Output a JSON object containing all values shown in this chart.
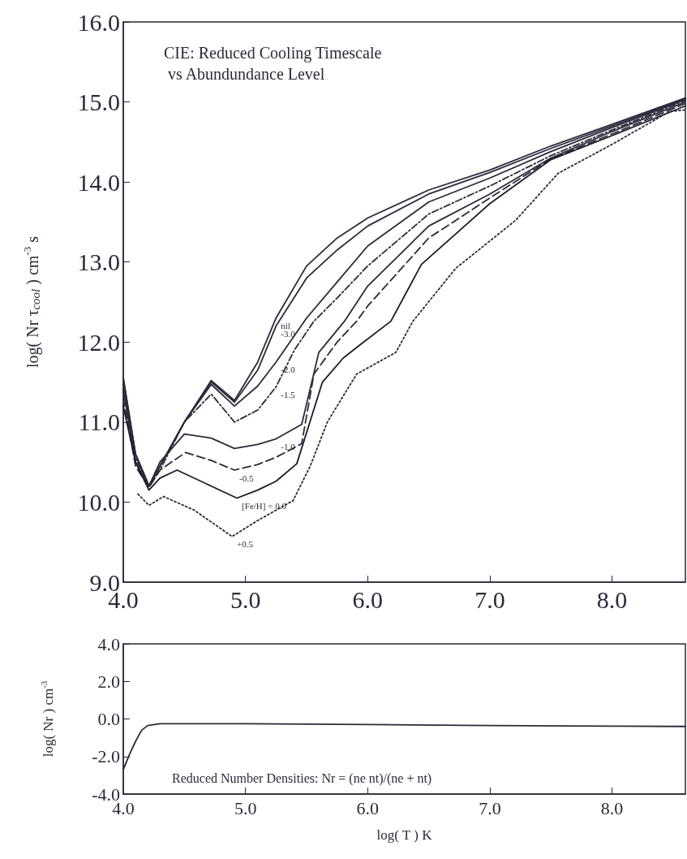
{
  "chart_data": [
    {
      "type": "line",
      "title": "CIE: Reduced Cooling Timescale\n vs Abundundance Level",
      "ylabel": "log( Nr τ$_{cool}$ ) cm$^{-3}$ s",
      "xlim": [
        4.0,
        8.6
      ],
      "ylim": [
        9.0,
        16.0
      ],
      "xticks": [
        {
          "value": 4,
          "label": "4.0"
        },
        {
          "value": 5,
          "label": "5.0"
        },
        {
          "value": 6,
          "label": "6.0"
        },
        {
          "value": 7,
          "label": "7.0"
        },
        {
          "value": 8,
          "label": "8.0"
        }
      ],
      "yticks": [
        {
          "value": 9,
          "label": "9.0"
        },
        {
          "value": 10,
          "label": "10.0"
        },
        {
          "value": 11,
          "label": "11.0"
        },
        {
          "value": 12,
          "label": "12.0"
        },
        {
          "value": 13,
          "label": "13.0"
        },
        {
          "value": 14,
          "label": "14.0"
        },
        {
          "value": 15,
          "label": "15.0"
        },
        {
          "value": 16,
          "label": "16.0"
        }
      ],
      "marker": "none",
      "grid": false,
      "series": [
        {
          "color": "#2a2a3a",
          "line_style": "solid",
          "x": [
            4.0,
            4.1,
            4.21,
            4.3,
            4.5,
            4.72,
            4.91,
            5.1,
            5.25,
            5.5,
            5.75,
            6.0,
            6.5,
            7.0,
            7.5,
            8.0,
            8.6
          ],
          "values": [
            11.55,
            10.6,
            10.2,
            10.45,
            11.0,
            11.52,
            11.27,
            11.75,
            12.3,
            12.95,
            13.3,
            13.55,
            13.9,
            14.15,
            14.45,
            14.72,
            15.05
          ]
        },
        {
          "color": "#2a2a3a",
          "line_style": "solid",
          "x": [
            4.0,
            4.1,
            4.21,
            4.3,
            4.5,
            4.72,
            4.91,
            5.1,
            5.25,
            5.5,
            5.75,
            6.0,
            6.5,
            7.0,
            7.5,
            8.0,
            8.6
          ],
          "values": [
            11.55,
            10.6,
            10.2,
            10.45,
            11.0,
            11.5,
            11.25,
            11.65,
            12.2,
            12.8,
            13.15,
            13.45,
            13.85,
            14.12,
            14.42,
            14.7,
            15.04
          ]
        },
        {
          "color": "#2a2a3a",
          "line_style": "solid",
          "x": [
            4.0,
            4.1,
            4.21,
            4.3,
            4.5,
            4.72,
            4.91,
            5.1,
            5.25,
            5.5,
            5.75,
            6.0,
            6.5,
            7.0,
            7.5,
            8.0,
            8.6
          ],
          "values": [
            11.5,
            10.6,
            10.2,
            10.45,
            11.0,
            11.47,
            11.2,
            11.45,
            11.75,
            12.3,
            12.75,
            13.2,
            13.75,
            14.05,
            14.38,
            14.68,
            15.03
          ]
        },
        {
          "color": "#2a2a3a",
          "line_style": "dashdot",
          "x": [
            4.0,
            4.1,
            4.21,
            4.3,
            4.5,
            4.72,
            4.91,
            5.1,
            5.25,
            5.4,
            5.56,
            5.75,
            6.0,
            6.5,
            7.0,
            7.5,
            8.0,
            8.6
          ],
          "values": [
            11.45,
            10.55,
            10.2,
            10.4,
            11.0,
            11.35,
            11.0,
            11.15,
            11.44,
            11.9,
            12.26,
            12.55,
            12.95,
            13.6,
            13.95,
            14.33,
            14.65,
            15.02
          ]
        },
        {
          "color": "#2a2a3a",
          "line_style": "solid",
          "x": [
            4.0,
            4.1,
            4.21,
            4.3,
            4.5,
            4.72,
            4.91,
            5.1,
            5.25,
            5.46,
            5.6,
            5.81,
            6.0,
            6.5,
            7.0,
            7.5,
            8.0,
            8.6
          ],
          "values": [
            11.4,
            10.5,
            10.2,
            10.5,
            10.85,
            10.8,
            10.67,
            10.72,
            10.79,
            10.97,
            11.87,
            12.26,
            12.7,
            13.45,
            13.85,
            14.3,
            14.63,
            15.0
          ]
        },
        {
          "color": "#2a2a3a",
          "line_style": "dashed",
          "x": [
            4.0,
            4.1,
            4.21,
            4.3,
            4.51,
            4.72,
            4.91,
            5.1,
            5.25,
            5.46,
            5.56,
            5.75,
            5.91,
            6.0,
            6.5,
            7.0,
            7.5,
            8.0,
            8.6
          ],
          "values": [
            11.3,
            10.45,
            10.18,
            10.4,
            10.62,
            10.52,
            10.4,
            10.47,
            10.56,
            10.73,
            11.6,
            12.0,
            12.26,
            12.45,
            13.3,
            13.8,
            14.29,
            14.6,
            14.98
          ]
        },
        {
          "color": "#1a1a2a",
          "line_style": "solid",
          "x": [
            4.0,
            4.1,
            4.21,
            4.3,
            4.44,
            4.72,
            4.93,
            5.1,
            5.25,
            5.42,
            5.63,
            5.8,
            5.95,
            6.19,
            6.44,
            7.0,
            7.5,
            8.0,
            8.6
          ],
          "values": [
            11.2,
            10.5,
            10.15,
            10.3,
            10.4,
            10.2,
            10.05,
            10.15,
            10.26,
            10.48,
            11.5,
            11.8,
            11.98,
            12.26,
            12.97,
            13.73,
            14.28,
            14.58,
            14.95
          ]
        },
        {
          "color": "#2a2a3a",
          "line_style": "dotted",
          "x": [
            4.12,
            4.21,
            4.33,
            4.58,
            4.89,
            5.1,
            5.39,
            5.53,
            5.67,
            5.91,
            6.23,
            6.37,
            6.72,
            7.21,
            7.56,
            8.0,
            8.47,
            8.6
          ],
          "values": [
            10.1,
            9.96,
            10.07,
            9.9,
            9.57,
            9.77,
            10.02,
            10.45,
            11.0,
            11.6,
            11.87,
            12.26,
            12.92,
            13.52,
            14.11,
            14.47,
            14.88,
            14.9
          ]
        }
      ],
      "annotations": [
        {
          "text": "nil",
          "x": 5.25,
          "y": 12.3
        },
        {
          "text": "-3.0",
          "x": 5.25,
          "y": 12.2
        },
        {
          "text": "-2.0",
          "x": 5.25,
          "y": 11.75
        },
        {
          "text": "-1.5",
          "x": 5.25,
          "y": 11.44
        },
        {
          "text": "-1.0",
          "x": 5.25,
          "y": 10.79
        },
        {
          "text": "-0.5",
          "x": 4.91,
          "y": 10.4
        },
        {
          "text": "[Fe/H] = 0.0",
          "x": 4.93,
          "y": 10.05
        },
        {
          "text": "+0.5",
          "x": 4.89,
          "y": 9.57
        }
      ]
    },
    {
      "type": "line",
      "xlabel": "log( T ) K",
      "ylabel": "log( Nr ) cm$^{-3}$",
      "xlim": [
        4.0,
        8.6
      ],
      "ylim": [
        -4.0,
        4.0
      ],
      "xticks": [
        {
          "value": 4,
          "label": "4.0"
        },
        {
          "value": 5,
          "label": "5.0"
        },
        {
          "value": 6,
          "label": "6.0"
        },
        {
          "value": 7,
          "label": "7.0"
        },
        {
          "value": 8,
          "label": "8.0"
        }
      ],
      "yticks": [
        {
          "value": -4,
          "label": "-4.0"
        },
        {
          "value": -2,
          "label": "-2.0"
        },
        {
          "value": 0,
          "label": "0.0"
        },
        {
          "value": 2,
          "label": "2.0"
        },
        {
          "value": 4,
          "label": "4.0"
        }
      ],
      "marker": "none",
      "grid": false,
      "series": [
        {
          "color": "#2a2a3a",
          "line_style": "solid",
          "x": [
            4.0,
            4.05,
            4.1,
            4.15,
            4.2,
            4.3,
            5.0,
            6.0,
            7.0,
            8.0,
            8.6
          ],
          "values": [
            -2.7,
            -1.9,
            -1.2,
            -0.6,
            -0.35,
            -0.25,
            -0.25,
            -0.3,
            -0.35,
            -0.38,
            -0.4
          ]
        }
      ],
      "annotations": [
        "Reduced Number Densities: Nr = (ne nt)/(ne + nt)"
      ]
    }
  ]
}
